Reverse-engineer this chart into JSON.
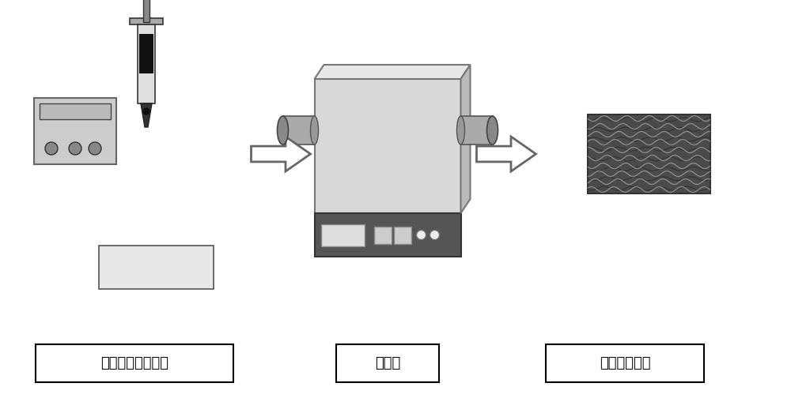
{
  "bg_color": "#ffffff",
  "fig_width": 10.0,
  "fig_height": 5.23,
  "labels": [
    "制备催化层前驱体",
    "热处理",
    "氧阴极膜电极"
  ],
  "label_fontsize": 13,
  "text_color": "#000000"
}
